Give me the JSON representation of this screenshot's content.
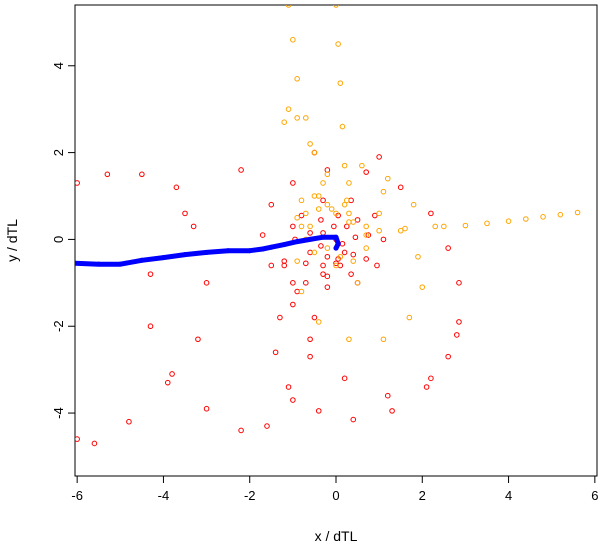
{
  "chart_data": {
    "type": "scatter",
    "title": "",
    "xlabel": "x / dTL",
    "ylabel": "y / dTL",
    "xlim": [
      -6.05,
      6.05
    ],
    "ylim": [
      -5.45,
      5.4
    ],
    "x_ticks": [
      -6,
      -4,
      -2,
      0,
      2,
      4,
      6
    ],
    "y_ticks": [
      -4,
      -2,
      0,
      2,
      4
    ],
    "grid": false,
    "legend": "none",
    "marker": "open circle",
    "series": [
      {
        "color": "#ff0000",
        "style": "circle-points",
        "points": [
          [
            0.0,
            0.0
          ],
          [
            0.15,
            -0.1
          ],
          [
            0.2,
            -0.3
          ],
          [
            0.05,
            -0.45
          ],
          [
            -0.2,
            -0.4
          ],
          [
            -0.35,
            -0.15
          ],
          [
            -0.3,
            0.15
          ],
          [
            -0.05,
            0.3
          ],
          [
            0.25,
            0.3
          ],
          [
            0.45,
            0.05
          ],
          [
            0.4,
            -0.35
          ],
          [
            0.1,
            -0.6
          ],
          [
            -0.3,
            -0.6
          ],
          [
            -0.6,
            -0.3
          ],
          [
            -0.6,
            0.15
          ],
          [
            -0.35,
            0.45
          ],
          [
            0.05,
            0.55
          ],
          [
            0.5,
            0.45
          ],
          [
            0.75,
            0.1
          ],
          [
            0.7,
            -0.45
          ],
          [
            0.35,
            -0.8
          ],
          [
            -0.2,
            -0.85
          ],
          [
            -0.7,
            -0.55
          ],
          [
            -0.95,
            0.0
          ],
          [
            -0.8,
            0.55
          ],
          [
            -0.3,
            0.9
          ],
          [
            0.35,
            0.9
          ],
          [
            0.9,
            0.55
          ],
          [
            1.1,
            0.0
          ],
          [
            0.95,
            -0.6
          ],
          [
            0.5,
            -1.0
          ],
          [
            -0.2,
            -1.1
          ],
          [
            -1.0,
            -1.0
          ],
          [
            -1.5,
            -0.6
          ],
          [
            -1.7,
            0.1
          ],
          [
            -1.5,
            0.8
          ],
          [
            -1.0,
            1.3
          ],
          [
            -0.2,
            1.6
          ],
          [
            0.7,
            1.55
          ],
          [
            1.5,
            1.2
          ],
          [
            2.2,
            0.6
          ],
          [
            2.6,
            -0.2
          ],
          [
            2.85,
            -1.0
          ],
          [
            2.85,
            -1.9
          ],
          [
            2.6,
            -2.7
          ],
          [
            2.1,
            -3.4
          ],
          [
            1.3,
            -3.95
          ],
          [
            0.4,
            -4.15
          ],
          [
            -0.4,
            -3.95
          ],
          [
            -1.1,
            -3.4
          ],
          [
            -1.4,
            -2.6
          ],
          [
            -1.3,
            -1.8
          ],
          [
            -0.9,
            -1.2
          ],
          [
            -0.3,
            -0.8
          ],
          [
            0.0,
            -0.55
          ],
          [
            1.0,
            1.9
          ],
          [
            -0.5,
            2.0
          ],
          [
            -2.2,
            1.6
          ],
          [
            -3.5,
            0.6
          ],
          [
            -4.3,
            -0.8
          ],
          [
            -4.3,
            -2.0
          ],
          [
            -3.8,
            -3.1
          ],
          [
            -3.0,
            -3.9
          ],
          [
            -2.2,
            -4.4
          ],
          [
            -1.6,
            -4.3
          ],
          [
            -1.0,
            -3.7
          ],
          [
            -0.6,
            -2.7
          ],
          [
            -0.5,
            -1.8
          ],
          [
            -0.7,
            -1.0
          ],
          [
            -1.2,
            -0.5
          ],
          [
            -1.0,
            0.3
          ],
          [
            -1.2,
            -0.6
          ],
          [
            -1.0,
            -1.5
          ],
          [
            -0.6,
            -2.3
          ],
          [
            0.2,
            -3.2
          ],
          [
            1.2,
            -3.6
          ],
          [
            2.2,
            -3.2
          ],
          [
            2.8,
            -2.2
          ],
          [
            -4.5,
            1.5
          ],
          [
            -3.7,
            1.2
          ],
          [
            -3.3,
            0.3
          ],
          [
            -3.0,
            -1.0
          ],
          [
            -3.2,
            -2.3
          ],
          [
            -3.9,
            -3.3
          ],
          [
            -4.8,
            -4.2
          ],
          [
            -5.6,
            -4.7
          ],
          [
            -6.0,
            -4.6
          ],
          [
            -6.0,
            1.3
          ],
          [
            -5.3,
            1.5
          ]
        ]
      },
      {
        "color": "#ffa500",
        "style": "circle-points",
        "points": [
          [
            -1.1,
            5.4
          ],
          [
            -1.0,
            4.6
          ],
          [
            -0.9,
            3.7
          ],
          [
            -0.7,
            2.8
          ],
          [
            -0.5,
            2.0
          ],
          [
            -0.3,
            1.3
          ],
          [
            -0.1,
            0.7
          ],
          [
            0.0,
            5.4
          ],
          [
            0.05,
            4.5
          ],
          [
            0.1,
            3.6
          ],
          [
            0.15,
            2.6
          ],
          [
            0.2,
            1.7
          ],
          [
            0.25,
            0.9
          ],
          [
            0.3,
            0.4
          ],
          [
            -1.2,
            2.7
          ],
          [
            -1.1,
            3.0
          ],
          [
            -0.9,
            2.8
          ],
          [
            -0.6,
            2.2
          ],
          [
            -0.2,
            1.5
          ],
          [
            0.2,
            0.8
          ],
          [
            -0.8,
            0.9
          ],
          [
            -0.5,
            1.0
          ],
          [
            -0.2,
            0.8
          ],
          [
            0.3,
            0.6
          ],
          [
            0.7,
            0.3
          ],
          [
            -0.9,
            0.5
          ],
          [
            -0.7,
            0.6
          ],
          [
            -0.4,
            0.7
          ],
          [
            0.0,
            0.6
          ],
          [
            0.4,
            0.4
          ],
          [
            0.7,
            0.1
          ],
          [
            0.7,
            -0.2
          ],
          [
            0.4,
            -0.5
          ],
          [
            0.0,
            -0.6
          ],
          [
            -0.5,
            -0.3
          ],
          [
            -0.7,
            0.0
          ],
          [
            -0.6,
            0.3
          ],
          [
            1.0,
            0.6
          ],
          [
            1.5,
            0.2
          ],
          [
            1.9,
            -0.4
          ],
          [
            2.0,
            -1.1
          ],
          [
            1.7,
            -1.8
          ],
          [
            1.1,
            -2.3
          ],
          [
            0.3,
            -2.3
          ],
          [
            -0.4,
            -1.9
          ],
          [
            -0.8,
            -1.2
          ],
          [
            -0.9,
            -0.5
          ],
          [
            -0.8,
            0.3
          ],
          [
            -0.4,
            1.0
          ],
          [
            0.3,
            1.3
          ],
          [
            1.1,
            1.1
          ],
          [
            1.8,
            0.8
          ],
          [
            0.5,
            -1.0
          ],
          [
            0.1,
            -0.4
          ],
          [
            -0.2,
            -0.2
          ],
          [
            0.6,
            1.7
          ],
          [
            1.2,
            1.4
          ],
          [
            2.3,
            0.3
          ],
          [
            1.0,
            0.2
          ],
          [
            1.6,
            0.25
          ],
          [
            2.5,
            0.3
          ],
          [
            3.0,
            0.32
          ],
          [
            3.5,
            0.37
          ],
          [
            4.0,
            0.42
          ],
          [
            4.4,
            0.47
          ],
          [
            4.8,
            0.52
          ],
          [
            5.2,
            0.57
          ],
          [
            5.6,
            0.62
          ]
        ]
      },
      {
        "color": "#0000ff",
        "style": "thick-line",
        "points": [
          [
            -6.05,
            -0.55
          ],
          [
            -5.5,
            -0.57
          ],
          [
            -5.0,
            -0.57
          ],
          [
            -4.5,
            -0.48
          ],
          [
            -4.0,
            -0.42
          ],
          [
            -3.5,
            -0.35
          ],
          [
            -3.0,
            -0.3
          ],
          [
            -2.5,
            -0.26
          ],
          [
            -2.0,
            -0.26
          ],
          [
            -1.7,
            -0.22
          ],
          [
            -1.5,
            -0.18
          ],
          [
            -1.2,
            -0.12
          ],
          [
            -0.9,
            -0.05
          ],
          [
            -0.6,
            0.0
          ],
          [
            -0.3,
            0.05
          ],
          [
            0.0,
            0.05
          ],
          [
            0.05,
            -0.1
          ],
          [
            0.0,
            -0.2
          ]
        ]
      }
    ]
  }
}
